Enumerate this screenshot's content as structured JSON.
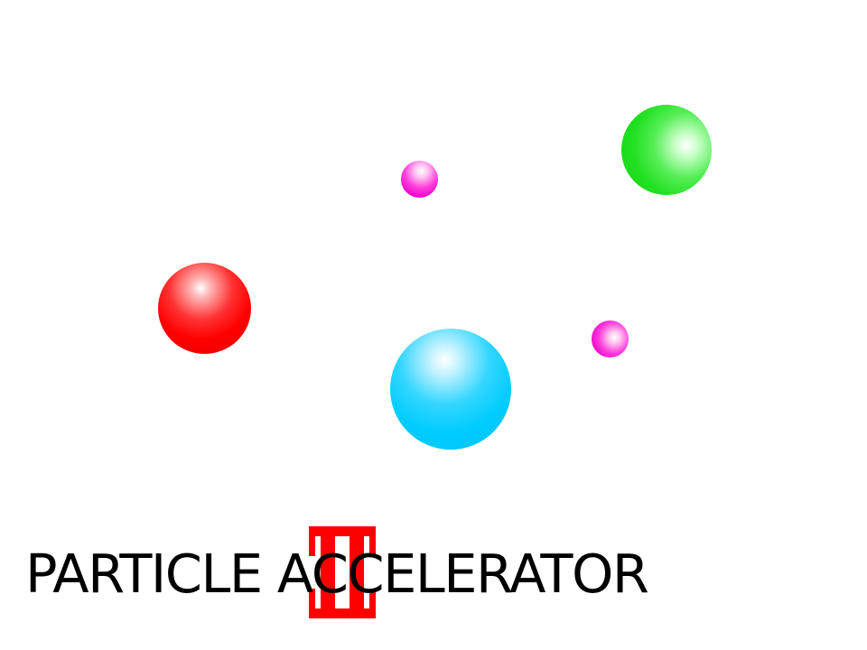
{
  "game": {
    "title": "PARTICLE ACCELERATOR",
    "logo": {
      "name": "roman-numeral-two-logo",
      "text": "II",
      "color": "#ff0000"
    }
  },
  "particles": [
    {
      "name": "particle-red",
      "color": "#ff0000"
    },
    {
      "name": "particle-cyan",
      "color": "#00ccff"
    },
    {
      "name": "particle-green",
      "color": "#22e022"
    },
    {
      "name": "particle-magenta",
      "color": "#ee00cc"
    },
    {
      "name": "particle-magenta",
      "color": "#ee00cc"
    }
  ]
}
